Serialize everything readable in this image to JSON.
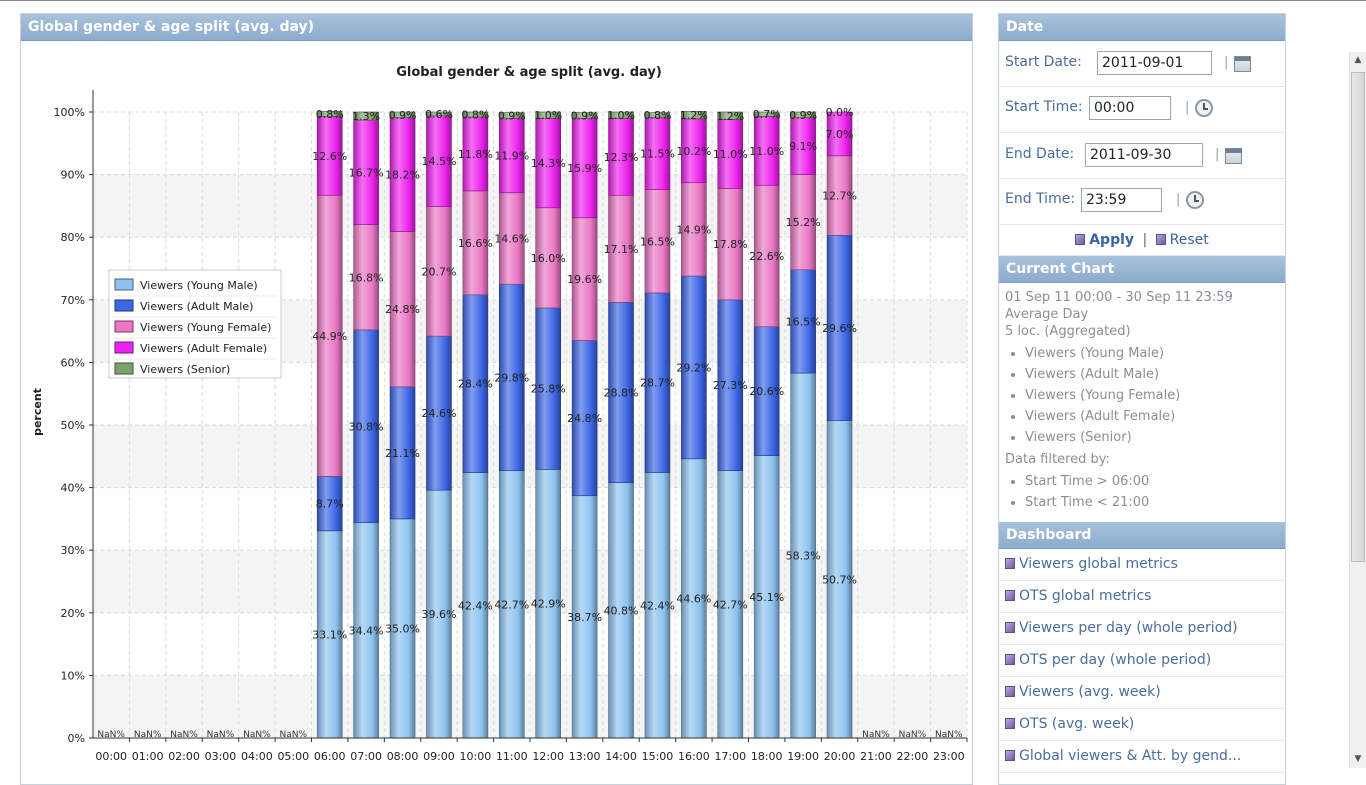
{
  "chart_panel": {
    "header_title": "Global gender & age split (avg. day)"
  },
  "chart_data": {
    "type": "bar",
    "stacked": true,
    "title": "Global gender & age split (avg. day)",
    "ylabel": "percent",
    "xlabel": "",
    "ylim": [
      0,
      100
    ],
    "y_ticks": [
      "0%",
      "10%",
      "20%",
      "30%",
      "40%",
      "50%",
      "60%",
      "70%",
      "80%",
      "90%",
      "100%"
    ],
    "grid": true,
    "legend_position": "left",
    "categories": [
      "00:00",
      "01:00",
      "02:00",
      "03:00",
      "04:00",
      "05:00",
      "06:00",
      "07:00",
      "08:00",
      "09:00",
      "10:00",
      "11:00",
      "12:00",
      "13:00",
      "14:00",
      "15:00",
      "16:00",
      "17:00",
      "18:00",
      "19:00",
      "20:00",
      "21:00",
      "22:00",
      "23:00"
    ],
    "nan_label": "NaN%",
    "series": [
      {
        "name": "Viewers (Young Male)",
        "color": "#8ec3f0",
        "values": [
          null,
          null,
          null,
          null,
          null,
          null,
          33.1,
          34.4,
          35.0,
          39.6,
          42.4,
          42.7,
          42.9,
          38.7,
          40.8,
          42.4,
          44.6,
          42.7,
          45.1,
          58.3,
          50.7,
          null,
          null,
          null
        ]
      },
      {
        "name": "Viewers (Adult Male)",
        "color": "#3d67e6",
        "values": [
          null,
          null,
          null,
          null,
          null,
          null,
          8.7,
          30.8,
          21.1,
          24.6,
          28.4,
          29.8,
          25.8,
          24.8,
          28.8,
          28.7,
          29.2,
          27.3,
          20.6,
          16.5,
          29.6,
          null,
          null,
          null
        ]
      },
      {
        "name": "Viewers (Young Female)",
        "color": "#ea77c4",
        "values": [
          null,
          null,
          null,
          null,
          null,
          null,
          44.9,
          16.8,
          24.8,
          20.7,
          16.6,
          14.6,
          16.0,
          19.6,
          17.1,
          16.5,
          14.9,
          17.8,
          22.6,
          15.2,
          12.7,
          null,
          null,
          null
        ]
      },
      {
        "name": "Viewers (Adult Female)",
        "color": "#ee22ee",
        "values": [
          null,
          null,
          null,
          null,
          null,
          null,
          12.6,
          16.7,
          18.2,
          14.5,
          11.8,
          11.9,
          14.3,
          15.9,
          12.3,
          11.5,
          10.2,
          11.0,
          11.0,
          9.1,
          7.0,
          null,
          null,
          null
        ]
      },
      {
        "name": "Viewers (Senior)",
        "color": "#7ea26e",
        "values": [
          null,
          null,
          null,
          null,
          null,
          null,
          0.8,
          1.3,
          0.9,
          0.6,
          0.8,
          0.9,
          1.0,
          0.9,
          1.0,
          0.8,
          1.2,
          1.2,
          0.7,
          0.9,
          0.0,
          null,
          null,
          null
        ]
      }
    ]
  },
  "sidebar": {
    "date_header": "Date",
    "start_date_label": "Start Date:",
    "start_date_value": "2011-09-01",
    "start_time_label": "Start Time:",
    "start_time_value": "00:00",
    "end_date_label": "End Date:",
    "end_date_value": "2011-09-30",
    "end_time_label": "End Time:",
    "end_time_value": "23:59",
    "separator": "|",
    "apply_label": "Apply",
    "reset_label": "Reset",
    "current_chart_header": "Current Chart",
    "period_text": "01 Sep 11 00:00 - 30 Sep 11 23:59",
    "aggregation_text": "Average Day",
    "locations_text": "5 loc. (Aggregated)",
    "series_list": [
      "Viewers (Young Male)",
      "Viewers (Adult Male)",
      "Viewers (Young Female)",
      "Viewers (Adult Female)",
      "Viewers (Senior)"
    ],
    "filter_label": "Data filtered by:",
    "filters": [
      "Start Time > 06:00",
      "Start Time < 21:00"
    ],
    "dashboard_header": "Dashboard",
    "dashboard_items": [
      "Viewers global metrics",
      "OTS global metrics",
      "Viewers per day (whole period)",
      "OTS per day (whole period)",
      "Viewers (avg. week)",
      "OTS (avg. week)",
      "Global viewers & Att. by gend..."
    ]
  },
  "icons": {
    "calendar": "calendar-icon",
    "clock": "clock-icon",
    "action": "action-icon"
  }
}
